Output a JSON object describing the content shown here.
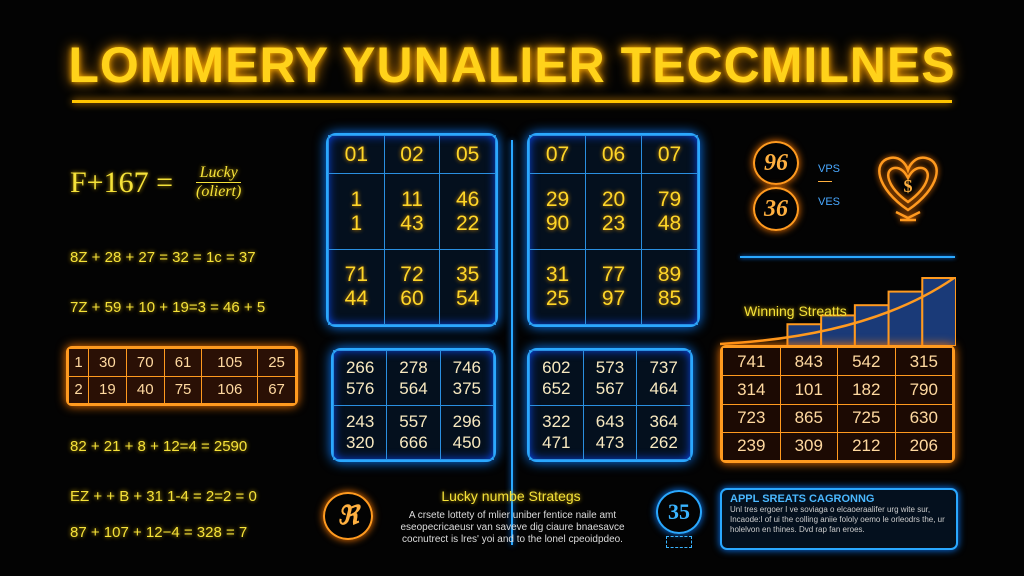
{
  "title": "LOMMERY YUNALIER TECCMILNES",
  "left": {
    "main_eq": "F+167 =",
    "frac_num": "Lucky",
    "frac_den": "(oliert)",
    "eqs_top": [
      "8Z + 28 + 27 = 32 = 1с = 37",
      "7Z + 59 + 10 + 19=3 = 46 + 5"
    ],
    "table": [
      [
        "1",
        "30",
        "70",
        "61",
        "105",
        "25"
      ],
      [
        "2",
        "19",
        "40",
        "75",
        "106",
        "67"
      ]
    ],
    "eqs_bottom": [
      "82 + 21 + 8  + 12=4 = 2590",
      "EZ + + B + 31 1-4 = 2=2 = 0",
      "87 + 107 + 12−4 = 328 = 7"
    ]
  },
  "center": {
    "grid_left": [
      [
        "01",
        "02",
        "05"
      ],
      [
        "1\n1",
        "11\n43",
        "46\n22"
      ],
      [
        "71\n44",
        "72\n60",
        "35\n54"
      ]
    ],
    "grid_right": [
      [
        "07",
        "06",
        "07"
      ],
      [
        "29\n90",
        "20\n23",
        "79\n48"
      ],
      [
        "31\n25",
        "77\n97",
        "89\n85"
      ]
    ],
    "small_left": [
      [
        "266\n576",
        "278\n564",
        "746\n375"
      ],
      [
        "243\n320",
        "557\n666",
        "296\n450"
      ]
    ],
    "small_right": [
      [
        "602\n652",
        "573\n567",
        "737\n464"
      ],
      [
        "322\n471",
        "643\n473",
        "364\n262"
      ]
    ]
  },
  "right": {
    "circle_top": "96",
    "circle_bottom": "36",
    "label_top": "VPS",
    "label_bottom": "VES",
    "heart_symbol": "$",
    "streaks_label": "Winning Streatts",
    "streak_levels": [
      0.1,
      0.22,
      0.32,
      0.45,
      0.6,
      0.8,
      1.0
    ],
    "table": [
      [
        "741",
        "843",
        "542",
        "315"
      ],
      [
        "314",
        "101",
        "182",
        "790"
      ],
      [
        "723",
        "865",
        "725",
        "630"
      ],
      [
        "239",
        "309",
        "212",
        "206"
      ]
    ]
  },
  "bottom": {
    "circle_glyph": "ℜ",
    "heading": "Lucky numbe Strategs",
    "para": [
      "A crsete lottety of mlier uniber fentice naile amt",
      "eseopecricaeusr van saveve dig ciaure bnaesavce",
      "cocnutrect is lres' yoi and to the lonel cpeoidpdeo."
    ],
    "badge": "35",
    "box_title": "APPL SREATS CAGRONNG",
    "box_text": "Unl tres ergoer I ve soviaga o elcaoeraalifer urg wite sur, Incaode:l of ui the colling aniie fololy oemo le orleodrs the, ur holelvon en thines. Dvd rap fan eroes."
  },
  "colors": {
    "accent_yellow": "#ffd21a",
    "accent_orange": "#ff9a1f",
    "accent_blue": "#2aa8ff",
    "background": "#030303"
  }
}
